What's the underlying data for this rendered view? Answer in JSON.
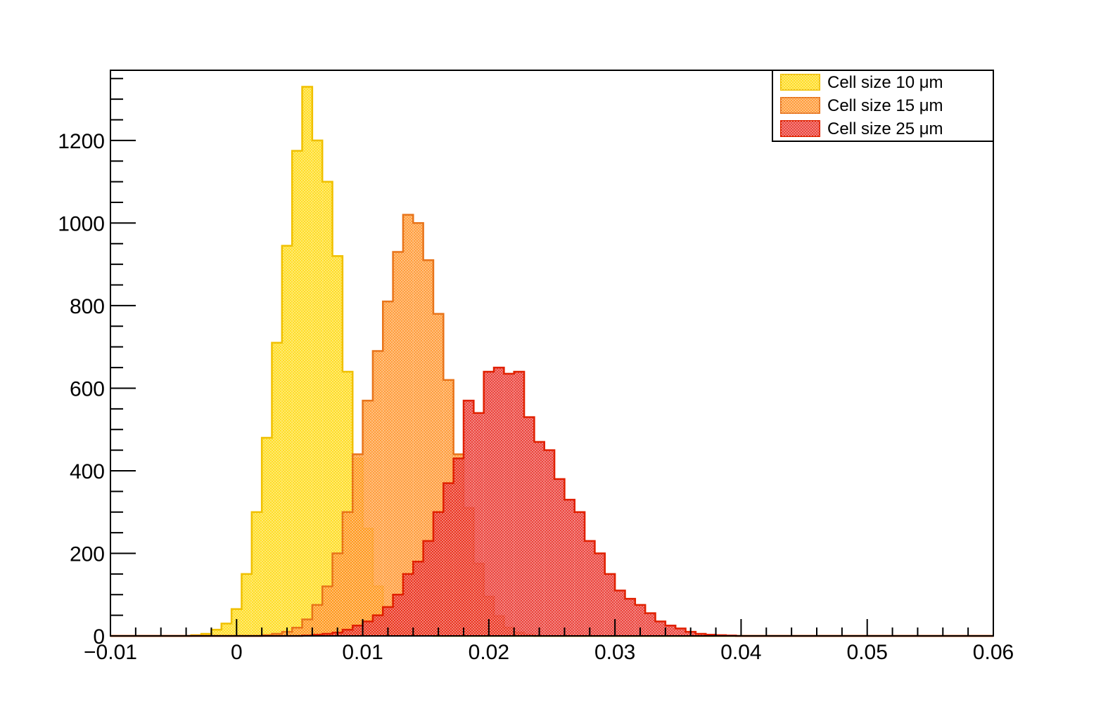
{
  "chart_data": {
    "type": "histogram",
    "title": "",
    "xlabel": "",
    "ylabel": "",
    "xlim": [
      -0.01,
      0.06
    ],
    "ylim": [
      0,
      1370
    ],
    "bin_width": 0.0008,
    "bin_start": -0.01,
    "x_ticks": [
      {
        "value": -0.01,
        "label": "−0.01"
      },
      {
        "value": 0,
        "label": "0"
      },
      {
        "value": 0.01,
        "label": "0.01"
      },
      {
        "value": 0.02,
        "label": "0.02"
      },
      {
        "value": 0.03,
        "label": "0.03"
      },
      {
        "value": 0.04,
        "label": "0.04"
      },
      {
        "value": 0.05,
        "label": "0.05"
      },
      {
        "value": 0.06,
        "label": "0.06"
      }
    ],
    "y_ticks": [
      {
        "value": 0,
        "label": "0"
      },
      {
        "value": 200,
        "label": "200"
      },
      {
        "value": 400,
        "label": "400"
      },
      {
        "value": 600,
        "label": "600"
      },
      {
        "value": 800,
        "label": "800"
      },
      {
        "value": 1000,
        "label": "1000"
      },
      {
        "value": 1200,
        "label": "1200"
      }
    ],
    "legend_position": "top-right",
    "series": [
      {
        "name": "Cell size 10 μm",
        "fill": "#ffd700",
        "stroke": "#f0c000",
        "values": [
          0,
          0,
          0,
          0,
          0,
          0,
          0,
          0,
          2,
          5,
          15,
          30,
          65,
          150,
          300,
          480,
          710,
          945,
          1175,
          1330,
          1200,
          1100,
          920,
          640,
          430,
          260,
          120,
          50,
          20,
          8,
          3,
          1
        ]
      },
      {
        "name": "Cell size 15 μm",
        "fill": "#ff8c1a",
        "stroke": "#e8741a",
        "values": [
          0,
          0,
          0,
          0,
          0,
          0,
          0,
          0,
          0,
          0,
          0,
          0,
          0,
          0,
          0,
          2,
          5,
          10,
          20,
          40,
          75,
          120,
          200,
          300,
          440,
          570,
          690,
          810,
          930,
          1020,
          1000,
          910,
          780,
          620,
          440,
          310,
          175,
          95,
          48,
          20,
          8,
          3
        ]
      },
      {
        "name": "Cell size 25 μm",
        "fill": "#e8221a",
        "stroke": "#e02000",
        "values": [
          0,
          0,
          0,
          0,
          0,
          0,
          0,
          0,
          0,
          0,
          0,
          0,
          0,
          0,
          0,
          0,
          0,
          0,
          0,
          1,
          3,
          5,
          8,
          15,
          25,
          35,
          50,
          70,
          100,
          150,
          180,
          230,
          300,
          370,
          430,
          570,
          540,
          640,
          650,
          635,
          640,
          530,
          470,
          450,
          380,
          330,
          300,
          230,
          200,
          150,
          110,
          90,
          75,
          55,
          35,
          25,
          18,
          10,
          5,
          3,
          2,
          1,
          0,
          0,
          0,
          0,
          0,
          0,
          0,
          0
        ]
      }
    ]
  }
}
